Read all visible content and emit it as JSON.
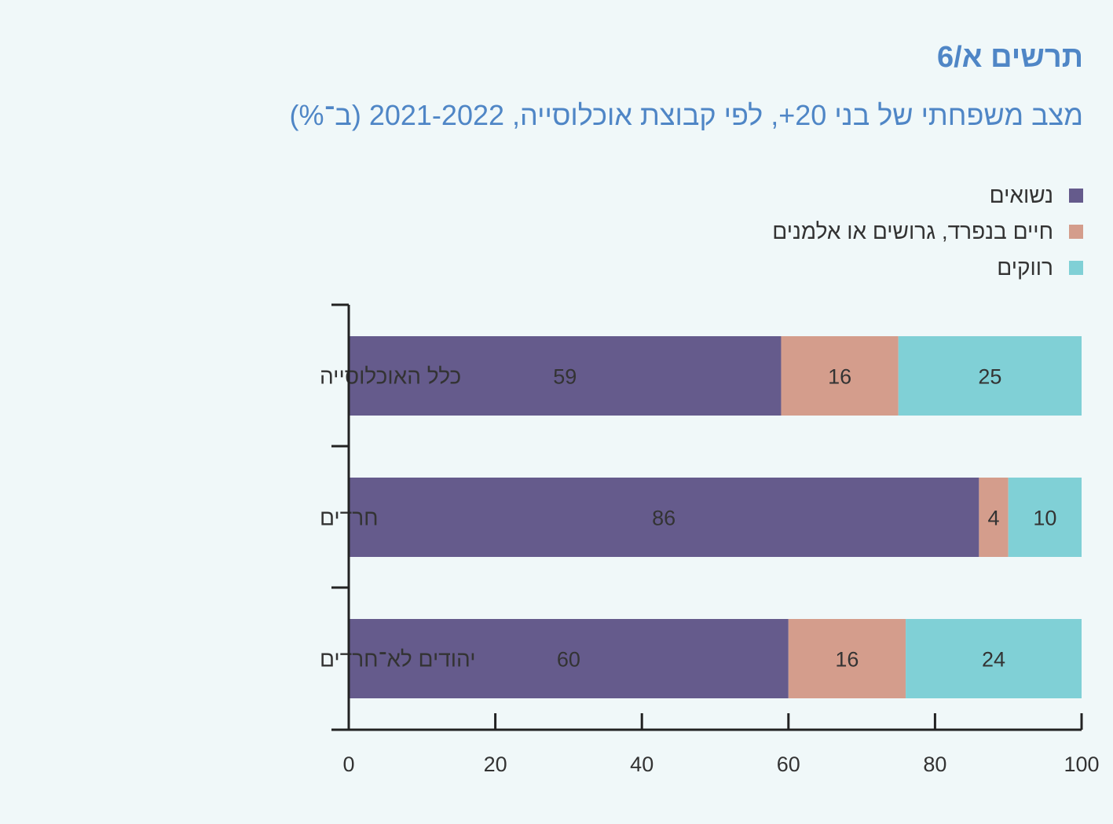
{
  "title": "תרשים א/6",
  "subtitle": "מצב משפחתי של בני 20+, לפי קבוצת אוכלוסייה, 2021-2022 (ב־%)",
  "colors": {
    "married": "#655b8c",
    "separated": "#d49d8c",
    "single": "#80d0d6",
    "title": "#4f86c6"
  },
  "chart_data": {
    "type": "bar",
    "orientation": "horizontal",
    "stacked": true,
    "categories": [
      "כלל האוכלוסייה",
      "חרדים",
      "יהודים לא־חרדים"
    ],
    "series": [
      {
        "name": "נשואים",
        "values": [
          59,
          86,
          60
        ],
        "color": "#655b8c"
      },
      {
        "name": "חיים בנפרד, גרושים או אלמנים",
        "values": [
          16,
          4,
          16
        ],
        "color": "#d49d8c"
      },
      {
        "name": "רווקים",
        "values": [
          25,
          10,
          24
        ],
        "color": "#80d0d6"
      }
    ],
    "xlim": [
      0,
      100
    ],
    "xticks": [
      "0",
      "20",
      "40",
      "60",
      "80",
      "100"
    ],
    "grid": false,
    "legend_position": "top-right"
  }
}
